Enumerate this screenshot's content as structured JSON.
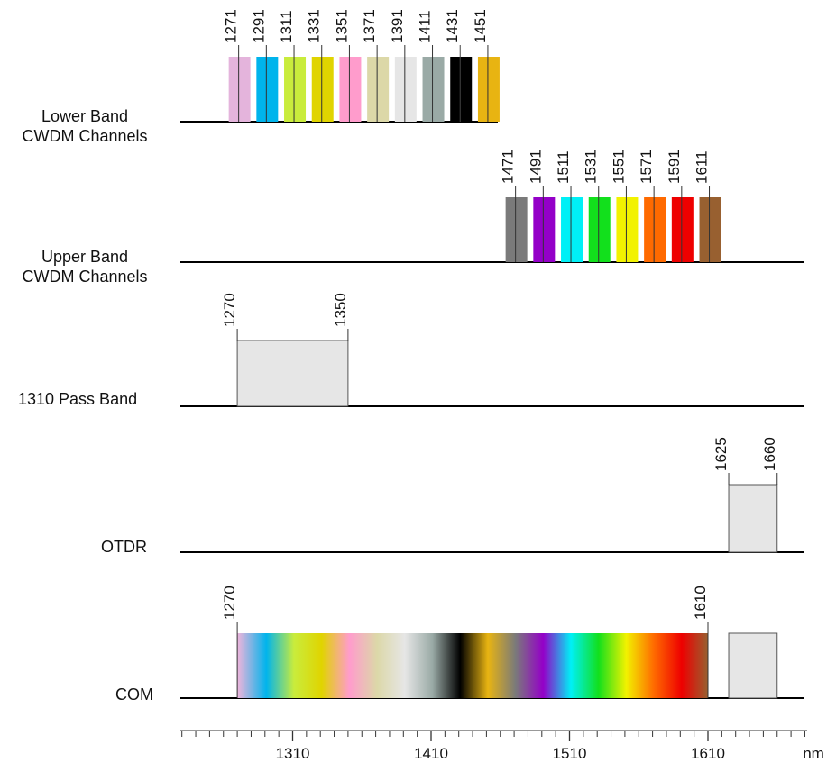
{
  "rows": {
    "lower": {
      "label_line1": "Lower Band",
      "label_line2": "CWDM Channels",
      "channels": [
        {
          "nm": 1271,
          "label": "1271",
          "color": "#e4b4dc"
        },
        {
          "nm": 1291,
          "label": "1291",
          "color": "#00b4ec"
        },
        {
          "nm": 1311,
          "label": "1311",
          "color": "#c9ec3c"
        },
        {
          "nm": 1331,
          "label": "1331",
          "color": "#e0d400"
        },
        {
          "nm": 1351,
          "label": "1351",
          "color": "#ff9ccc"
        },
        {
          "nm": 1371,
          "label": "1371",
          "color": "#dcd8a8"
        },
        {
          "nm": 1391,
          "label": "1391",
          "color": "#e6e6e6"
        },
        {
          "nm": 1411,
          "label": "1411",
          "color": "#9aaaa6"
        },
        {
          "nm": 1431,
          "label": "1431",
          "color": "#000000"
        },
        {
          "nm": 1451,
          "label": "1451",
          "color": "#e8b412"
        }
      ]
    },
    "upper": {
      "label_line1": "Upper Band",
      "label_line2": "CWDM Channels",
      "channels": [
        {
          "nm": 1471,
          "label": "1471",
          "color": "#7a7a7a"
        },
        {
          "nm": 1491,
          "label": "1491",
          "color": "#9400c8"
        },
        {
          "nm": 1511,
          "label": "1511",
          "color": "#00f0f6"
        },
        {
          "nm": 1531,
          "label": "1531",
          "color": "#12e01c"
        },
        {
          "nm": 1551,
          "label": "1551",
          "color": "#f2f200"
        },
        {
          "nm": 1571,
          "label": "1571",
          "color": "#ff6a00"
        },
        {
          "nm": 1591,
          "label": "1591",
          "color": "#ee0000"
        },
        {
          "nm": 1611,
          "label": "1611",
          "color": "#986030"
        }
      ]
    },
    "passband": {
      "label": "1310 Pass Band",
      "start_label": "1270",
      "end_label": "1350",
      "start": 1270,
      "end": 1350
    },
    "otdr": {
      "label": "OTDR",
      "start_label": "1625",
      "end_label": "1660",
      "start": 1625,
      "end": 1660
    },
    "com": {
      "label": "COM",
      "start_label": "1270",
      "end_label": "1610",
      "start": 1270,
      "end": 1610,
      "otdr_start": 1625,
      "otdr_end": 1660
    }
  },
  "axis": {
    "unit": "nm",
    "ticks": [
      {
        "value": 1310,
        "label": "1310"
      },
      {
        "value": 1410,
        "label": "1410"
      },
      {
        "value": 1510,
        "label": "1510"
      },
      {
        "value": 1610,
        "label": "1610"
      }
    ],
    "minor_step": 10,
    "range": [
      1230,
      1680
    ]
  },
  "colors": {
    "box_fill": "#e6e6e6",
    "line": "#000000"
  }
}
